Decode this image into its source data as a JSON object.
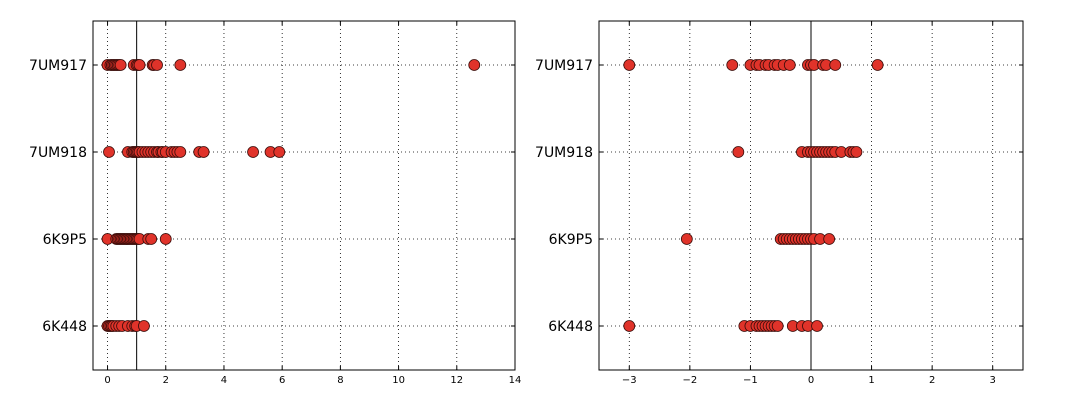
{
  "chart_data": [
    {
      "type": "scatter",
      "title": "",
      "xlabel": "",
      "ylabel": "",
      "xlim": [
        -0.5,
        14
      ],
      "xticks": [
        0,
        2,
        4,
        6,
        8,
        10,
        12,
        14
      ],
      "xtick_labels": [
        "0",
        "2",
        "4",
        "6",
        "8",
        "10",
        "12",
        "14"
      ],
      "reference_line_x": 1,
      "grid": true,
      "marker_color": "#e0332a",
      "categories": [
        "7UM917",
        "7UM918",
        "6K9P5",
        "6K448"
      ],
      "series": [
        {
          "category": "7UM917",
          "x": [
            0,
            0.1,
            0.15,
            0.2,
            0.25,
            0.3,
            0.35,
            0.4,
            0.45,
            0.9,
            1.0,
            1.05,
            1.1,
            1.55,
            1.6,
            1.7,
            2.5,
            12.6
          ]
        },
        {
          "category": "7UM918",
          "x": [
            0.05,
            0.7,
            0.85,
            0.9,
            0.95,
            1.0,
            1.05,
            1.1,
            1.2,
            1.3,
            1.4,
            1.5,
            1.6,
            1.7,
            1.75,
            1.85,
            1.9,
            2.0,
            2.2,
            2.3,
            2.4,
            2.5,
            3.15,
            3.3,
            5.0,
            5.6,
            5.9
          ]
        },
        {
          "category": "6K9P5",
          "x": [
            0,
            0.3,
            0.35,
            0.4,
            0.45,
            0.5,
            0.55,
            0.6,
            0.65,
            0.7,
            0.75,
            0.8,
            0.85,
            0.9,
            0.95,
            1.0,
            1.05,
            1.1,
            1.4,
            1.5,
            2.0
          ]
        },
        {
          "category": "6K448",
          "x": [
            0,
            0.05,
            0.1,
            0.15,
            0.2,
            0.3,
            0.4,
            0.5,
            0.7,
            0.85,
            0.95,
            1.0,
            1.25
          ]
        }
      ]
    },
    {
      "type": "scatter",
      "title": "",
      "xlabel": "",
      "ylabel": "",
      "xlim": [
        -3.5,
        3.5
      ],
      "xticks": [
        -3,
        -2,
        -1,
        0,
        1,
        2,
        3
      ],
      "xtick_labels": [
        "−3",
        "−2",
        "−1",
        "0",
        "1",
        "2",
        "3"
      ],
      "reference_line_x": 0,
      "grid": true,
      "marker_color": "#e0332a",
      "categories": [
        "7UM917",
        "7UM918",
        "6K9P5",
        "6K448"
      ],
      "series": [
        {
          "category": "7UM917",
          "x": [
            -3.0,
            -1.3,
            -1.0,
            -0.9,
            -0.85,
            -0.75,
            -0.7,
            -0.6,
            -0.55,
            -0.45,
            -0.35,
            -0.05,
            0.0,
            0.05,
            0.2,
            0.25,
            0.4,
            1.1
          ]
        },
        {
          "category": "7UM918",
          "x": [
            -1.2,
            -0.15,
            -0.05,
            0.0,
            0.05,
            0.1,
            0.15,
            0.2,
            0.25,
            0.3,
            0.35,
            0.4,
            0.5,
            0.65,
            0.7,
            0.75
          ]
        },
        {
          "category": "6K9P5",
          "x": [
            -2.05,
            -0.5,
            -0.45,
            -0.4,
            -0.35,
            -0.3,
            -0.25,
            -0.2,
            -0.15,
            -0.1,
            -0.05,
            0.0,
            0.05,
            0.15,
            0.3
          ]
        },
        {
          "category": "6K448",
          "x": [
            -3.0,
            -1.1,
            -1.0,
            -0.9,
            -0.85,
            -0.8,
            -0.75,
            -0.7,
            -0.65,
            -0.6,
            -0.55,
            -0.3,
            -0.15,
            -0.05,
            0.1
          ]
        }
      ]
    }
  ]
}
